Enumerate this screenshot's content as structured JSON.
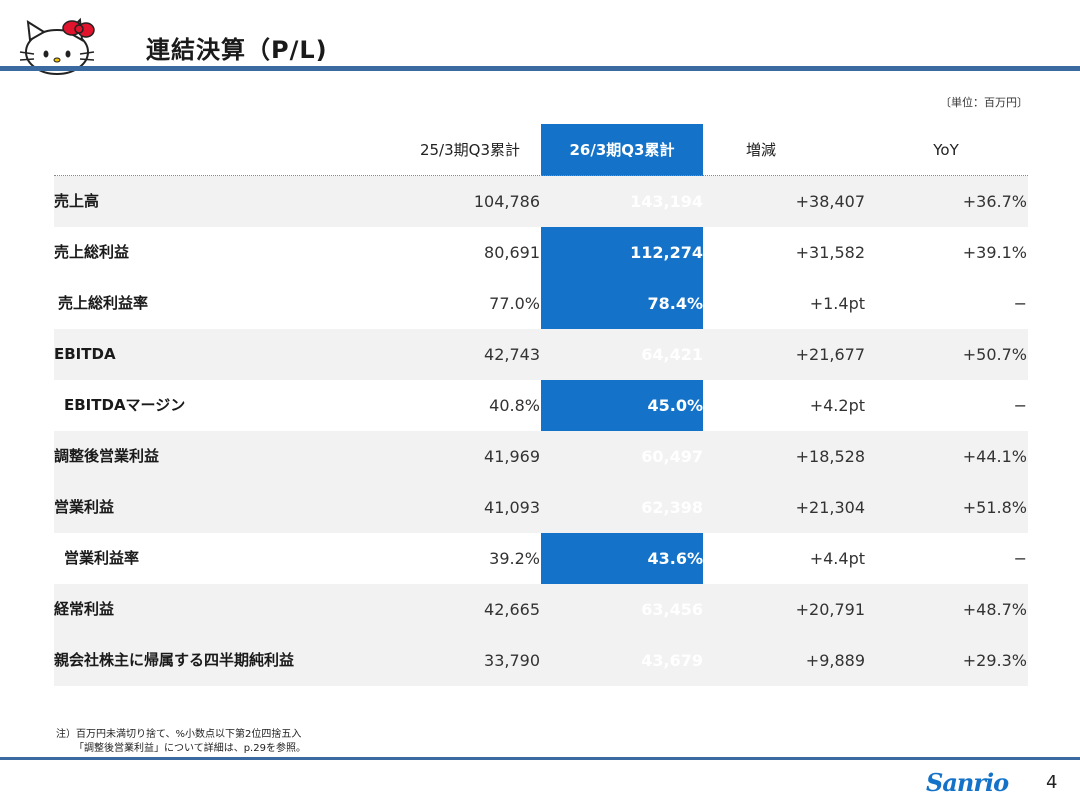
{
  "header": {
    "title": "連結決算（P/L)",
    "unit_note": "〔単位：百万円〕"
  },
  "table": {
    "columns": [
      "25/3期Q3累計",
      "26/3期Q3累計",
      "増減",
      "YoY"
    ],
    "rows": [
      {
        "label": "売上高",
        "prev": "104,786",
        "cur": "143,194",
        "diff": "+38,407",
        "yoy": "+36.7%"
      },
      {
        "label": "売上総利益",
        "prev": "80,691",
        "cur": "112,274",
        "diff": "+31,582",
        "yoy": "+39.1%"
      },
      {
        "label": "売上総利益率",
        "prev": "77.0%",
        "cur": "78.4%",
        "diff": "+1.4pt",
        "yoy": "−"
      },
      {
        "label": "EBITDA",
        "prev": "42,743",
        "cur": "64,421",
        "diff": "+21,677",
        "yoy": "+50.7%"
      },
      {
        "label": "EBITDAマージン",
        "prev": "40.8%",
        "cur": "45.0%",
        "diff": "+4.2pt",
        "yoy": "−"
      },
      {
        "label": "調整後営業利益",
        "prev": "41,969",
        "cur": "60,497",
        "diff": "+18,528",
        "yoy": "+44.1%"
      },
      {
        "label": "営業利益",
        "prev": "41,093",
        "cur": "62,398",
        "diff": "+21,304",
        "yoy": "+51.8%"
      },
      {
        "label": "営業利益率",
        "prev": "39.2%",
        "cur": "43.6%",
        "diff": "+4.4pt",
        "yoy": "−"
      },
      {
        "label": "経常利益",
        "prev": "42,665",
        "cur": "63,456",
        "diff": "+20,791",
        "yoy": "+48.7%"
      },
      {
        "label": "親会社株主に帰属する四半期純利益",
        "prev": "33,790",
        "cur": "43,679",
        "diff": "+9,889",
        "yoy": "+29.3%"
      }
    ]
  },
  "notes": [
    "注）百万円未満切り捨て、%小数点以下第2位四捨五入",
    "「調整後営業利益」について詳細は、p.29を参照。"
  ],
  "footer": {
    "logo_text": "Sanrio",
    "page_number": "4"
  },
  "colors": {
    "accent": "#1473c8",
    "rule": "#3a6aa0",
    "row_shade": "#f2f2f2"
  }
}
